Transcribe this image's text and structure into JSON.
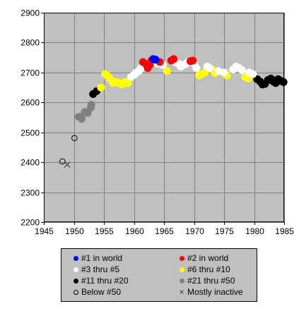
{
  "chart_data": {
    "type": "scatter",
    "title": "",
    "xlabel": "",
    "ylabel": "",
    "xlim": [
      1945,
      1985
    ],
    "ylim": [
      2200,
      2900
    ],
    "x_ticks": [
      1945,
      1950,
      1955,
      1960,
      1965,
      1970,
      1975,
      1980,
      1985
    ],
    "y_ticks": [
      2200,
      2300,
      2400,
      2500,
      2600,
      2700,
      2800,
      2900
    ],
    "grid": true,
    "plot_background": "#c0c0c0",
    "legend_position": "bottom",
    "series": [
      {
        "name": "#1 in world",
        "color": "#0000ff",
        "marker": "dot",
        "points": [
          [
            1963.2,
            2745
          ],
          [
            1963.6,
            2743
          ]
        ]
      },
      {
        "name": "#2 in world",
        "color": "#ff0000",
        "marker": "dot",
        "points": [
          [
            1961.5,
            2735
          ],
          [
            1962.0,
            2728
          ],
          [
            1962.3,
            2715
          ],
          [
            1962.6,
            2725
          ],
          [
            1962.9,
            2740
          ],
          [
            1964.3,
            2735
          ],
          [
            1966.2,
            2740
          ],
          [
            1966.6,
            2745
          ],
          [
            1969.4,
            2738
          ],
          [
            1969.8,
            2740
          ]
        ]
      },
      {
        "name": "#3 thru #5",
        "color": "#ffffff",
        "marker": "dot",
        "points": [
          [
            1959.5,
            2685
          ],
          [
            1960.0,
            2692
          ],
          [
            1960.4,
            2700
          ],
          [
            1960.8,
            2705
          ],
          [
            1961.2,
            2715
          ],
          [
            1963.9,
            2730
          ],
          [
            1964.8,
            2725
          ],
          [
            1966.8,
            2735
          ],
          [
            1967.4,
            2730
          ],
          [
            1967.8,
            2720
          ],
          [
            1968.2,
            2725
          ],
          [
            1968.6,
            2728
          ],
          [
            1969.0,
            2735
          ],
          [
            1970.0,
            2730
          ],
          [
            1970.4,
            2715
          ],
          [
            1972.2,
            2720
          ],
          [
            1972.6,
            2715
          ],
          [
            1974.0,
            2705
          ],
          [
            1975.0,
            2700
          ],
          [
            1976.5,
            2710
          ],
          [
            1977.0,
            2720
          ],
          [
            1977.5,
            2715
          ],
          [
            1978.0,
            2708
          ],
          [
            1979.2,
            2700
          ],
          [
            1979.8,
            2695
          ]
        ]
      },
      {
        "name": "#6 thru #10",
        "color": "#ffff00",
        "marker": "dot",
        "points": [
          [
            1954.5,
            2650
          ],
          [
            1955.2,
            2695
          ],
          [
            1955.6,
            2688
          ],
          [
            1956.0,
            2680
          ],
          [
            1956.5,
            2665
          ],
          [
            1957.0,
            2668
          ],
          [
            1957.5,
            2665
          ],
          [
            1958.0,
            2660
          ],
          [
            1958.5,
            2668
          ],
          [
            1959.0,
            2665
          ],
          [
            1965.5,
            2705
          ],
          [
            1970.8,
            2690
          ],
          [
            1971.3,
            2695
          ],
          [
            1971.8,
            2700
          ],
          [
            1973.0,
            2710
          ],
          [
            1973.5,
            2698
          ],
          [
            1975.5,
            2690
          ],
          [
            1978.5,
            2685
          ],
          [
            1979.0,
            2680
          ]
        ]
      },
      {
        "name": "#11 thru #20",
        "color": "#000000",
        "marker": "dot",
        "points": [
          [
            1953.2,
            2628
          ],
          [
            1953.8,
            2638
          ],
          [
            1980.5,
            2678
          ],
          [
            1981.0,
            2670
          ],
          [
            1981.4,
            2660
          ],
          [
            1981.8,
            2662
          ],
          [
            1982.3,
            2675
          ],
          [
            1982.8,
            2680
          ],
          [
            1983.2,
            2670
          ],
          [
            1983.6,
            2665
          ],
          [
            1984.0,
            2678
          ],
          [
            1984.5,
            2672
          ],
          [
            1984.9,
            2668
          ]
        ]
      },
      {
        "name": "#21 thru #50",
        "color": "#808080",
        "marker": "dot",
        "points": [
          [
            1950.8,
            2552
          ],
          [
            1951.3,
            2545
          ],
          [
            1951.8,
            2568
          ],
          [
            1952.3,
            2565
          ],
          [
            1952.8,
            2582
          ],
          [
            1952.9,
            2592
          ]
        ]
      },
      {
        "name": "Below #50",
        "color": "#000000",
        "marker": "circle",
        "points": [
          [
            1948.1,
            2403
          ],
          [
            1950.1,
            2481
          ]
        ]
      },
      {
        "name": "Mostly inactive",
        "color": "#333333",
        "marker": "x",
        "points": [
          [
            1948.9,
            2392
          ]
        ]
      }
    ]
  }
}
